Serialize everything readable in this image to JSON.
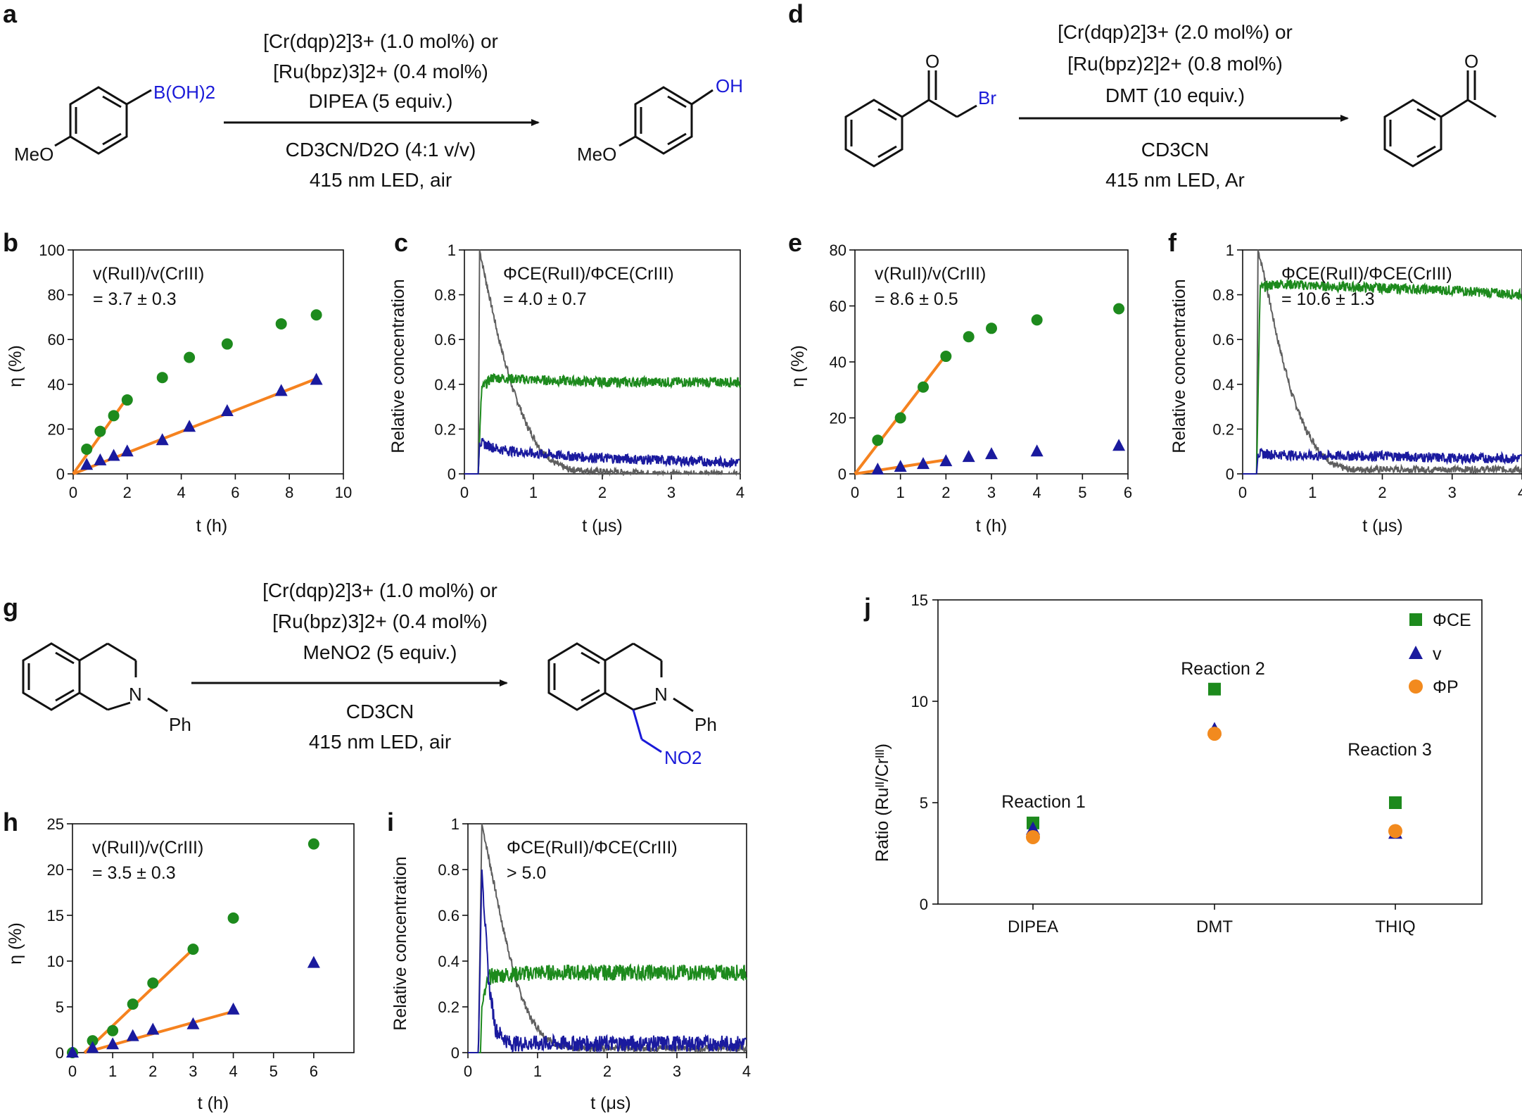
{
  "figure": {
    "panels": {
      "a": "a",
      "b": "b",
      "c": "c",
      "d": "d",
      "e": "e",
      "f": "f",
      "g": "g",
      "h": "h",
      "i": "i",
      "j": "j"
    },
    "axis_labels": {
      "t_h": "t (h)",
      "t_us": "t (μs)",
      "eta": "η (%)",
      "relconc": "Relative concentration",
      "ratio": "Ratio (Ruᴵᴵ/Crᴵᴵᴵ)"
    },
    "colors": {
      "green": "#1d8a1d",
      "blue": "#1a1a9e",
      "gray": "#5e5e5e",
      "orange": "#f28a1e",
      "fitline": "#f5821f"
    }
  },
  "schemes": {
    "a": {
      "substrate_group": "B(OH)2",
      "substrate_ome": "MeO",
      "line1": "[Cr(dqp)2]3+ (1.0 mol%) or",
      "line2": "[Ru(bpz)3]2+ (0.4 mol%)",
      "line3": "DIPEA (5 equiv.)",
      "line4": "CD3CN/D2O (4:1 v/v)",
      "line5": "415 nm LED, air",
      "product_group": "OH",
      "product_ome": "MeO"
    },
    "d": {
      "substrate_o": "O",
      "substrate_br": "Br",
      "line1": "[Cr(dqp)2]3+ (2.0 mol%) or",
      "line2": "[Ru(bpz)2]2+ (0.8 mol%)",
      "line3": "DMT (10 equiv.)",
      "line4": "CD3CN",
      "line5": "415 nm LED, Ar",
      "product_o": "O"
    },
    "g": {
      "n_label": "N",
      "ph_label": "Ph",
      "line1": "[Cr(dqp)2]3+ (1.0 mol%) or",
      "line2": "[Ru(bpz)3]2+ (0.4 mol%)",
      "line3": "MeNO2 (5 equiv.)",
      "line4": "CD3CN",
      "line5": "415 nm LED, air",
      "product_n": "N",
      "product_ph": "Ph",
      "product_no2": "NO2"
    }
  },
  "chart_data": [
    {
      "id": "b",
      "type": "scatter",
      "xlabel": "t (h)",
      "ylabel": "η (%)",
      "xlim": [
        0,
        10
      ],
      "ylim": [
        0,
        100
      ],
      "xticks": [
        0,
        2,
        4,
        6,
        8,
        10
      ],
      "yticks": [
        0,
        20,
        40,
        60,
        80,
        100
      ],
      "annotation": [
        "v(RuII)/v(CrIII)",
        "= 3.7 ± 0.3"
      ],
      "series": [
        {
          "name": "Ru(II)",
          "marker": "circle",
          "x": [
            0.5,
            1.0,
            1.5,
            2.0,
            3.3,
            4.3,
            5.7,
            7.7,
            9.0
          ],
          "y": [
            11,
            19,
            26,
            33,
            43,
            52,
            58,
            67,
            71
          ]
        },
        {
          "name": "Cr(III)",
          "marker": "triangle",
          "x": [
            0.5,
            1.0,
            1.5,
            2.0,
            3.3,
            4.3,
            5.7,
            7.7,
            9.0
          ],
          "y": [
            4,
            6,
            8,
            10,
            15,
            21,
            28,
            37,
            42
          ]
        }
      ],
      "fits": [
        {
          "x": [
            0,
            2.0
          ],
          "y": [
            0,
            34
          ]
        },
        {
          "x": [
            0,
            9.0
          ],
          "y": [
            0,
            42.5
          ]
        }
      ]
    },
    {
      "id": "c",
      "type": "line",
      "xlabel": "t (μs)",
      "ylabel": "Relative concentration",
      "xlim": [
        0,
        4
      ],
      "ylim": [
        0,
        1.0
      ],
      "xticks": [
        0,
        1,
        2,
        3,
        4
      ],
      "yticks": [
        0,
        0.2,
        0.4,
        0.6,
        0.8,
        1.0
      ],
      "annotation": [
        "ΦCE(RuII)/ΦCE(CrIII)",
        "= 4.0 ± 0.7"
      ],
      "traces": [
        {
          "name": "gray decay",
          "color": "gray",
          "x": [
            0,
            0.2,
            0.22,
            0.3,
            0.5,
            0.7,
            0.9,
            1.1,
            1.3,
            1.5,
            2.0,
            3.0,
            4.0
          ],
          "y": [
            0,
            0.0,
            1.0,
            0.88,
            0.6,
            0.38,
            0.22,
            0.11,
            0.05,
            0.02,
            0.01,
            0.0,
            0.0
          ]
        },
        {
          "name": "green",
          "color": "green",
          "x": [
            0,
            0.2,
            0.25,
            0.4,
            1.0,
            2.0,
            3.0,
            4.0
          ],
          "y": [
            0,
            0,
            0.38,
            0.43,
            0.42,
            0.41,
            0.41,
            0.41
          ]
        },
        {
          "name": "blue",
          "color": "blue",
          "x": [
            0,
            0.2,
            0.22,
            0.5,
            1.0,
            2.0,
            3.0,
            4.0
          ],
          "y": [
            0,
            0,
            0.14,
            0.11,
            0.09,
            0.07,
            0.06,
            0.05
          ]
        }
      ]
    },
    {
      "id": "e",
      "type": "scatter",
      "xlabel": "t (h)",
      "ylabel": "η (%)",
      "xlim": [
        0,
        6
      ],
      "ylim": [
        0,
        80
      ],
      "xticks": [
        0,
        1,
        2,
        3,
        4,
        5,
        6
      ],
      "yticks": [
        0,
        20,
        40,
        60,
        80
      ],
      "annotation": [
        "v(RuII)/v(CrIII)",
        "= 8.6 ± 0.5"
      ],
      "series": [
        {
          "name": "Ru(II)",
          "marker": "circle",
          "x": [
            0.5,
            1.0,
            1.5,
            2.0,
            2.5,
            3.0,
            4.0,
            5.8
          ],
          "y": [
            12,
            20,
            31,
            42,
            49,
            52,
            55,
            59
          ]
        },
        {
          "name": "Cr(III)",
          "marker": "triangle",
          "x": [
            0.5,
            1.0,
            1.5,
            2.0,
            2.5,
            3.0,
            4.0,
            5.8
          ],
          "y": [
            1.5,
            2.5,
            3.5,
            4.5,
            6,
            7,
            8,
            10
          ]
        }
      ],
      "fits": [
        {
          "x": [
            0,
            2.0
          ],
          "y": [
            0,
            42.5
          ]
        },
        {
          "x": [
            0,
            2.0
          ],
          "y": [
            0,
            5
          ]
        }
      ]
    },
    {
      "id": "f",
      "type": "line",
      "xlabel": "t (μs)",
      "ylabel": "Relative concentration",
      "xlim": [
        0,
        4
      ],
      "ylim": [
        0,
        1.0
      ],
      "xticks": [
        0,
        1,
        2,
        3,
        4
      ],
      "yticks": [
        0,
        0.2,
        0.4,
        0.6,
        0.8,
        1.0
      ],
      "annotation": [
        "ΦCE(RuII)/ΦCE(CrIII)",
        "= 10.6 ± 1.3"
      ],
      "traces": [
        {
          "name": "gray decay",
          "color": "gray",
          "x": [
            0,
            0.2,
            0.22,
            0.3,
            0.5,
            0.7,
            0.9,
            1.1,
            1.3,
            1.5,
            2.0,
            3.0,
            4.0
          ],
          "y": [
            0,
            0,
            1.0,
            0.9,
            0.6,
            0.36,
            0.2,
            0.1,
            0.04,
            0.02,
            0.02,
            0.02,
            0.02
          ]
        },
        {
          "name": "green",
          "color": "green",
          "x": [
            0,
            0.2,
            0.25,
            0.5,
            1.0,
            2.0,
            3.0,
            4.0
          ],
          "y": [
            0,
            0,
            0.83,
            0.85,
            0.84,
            0.83,
            0.82,
            0.8
          ]
        },
        {
          "name": "blue",
          "color": "blue",
          "x": [
            0,
            0.2,
            0.22,
            1.0,
            2.0,
            3.0,
            4.0
          ],
          "y": [
            0,
            0,
            0.09,
            0.08,
            0.08,
            0.07,
            0.07
          ]
        }
      ]
    },
    {
      "id": "h",
      "type": "scatter",
      "xlabel": "t (h)",
      "ylabel": "η (%)",
      "xlim": [
        0,
        7
      ],
      "ylim": [
        0,
        25
      ],
      "xticks": [
        0,
        1,
        2,
        3,
        4,
        5,
        6
      ],
      "yticks": [
        0,
        5,
        10,
        15,
        20,
        25
      ],
      "annotation": [
        "v(RuII)/v(CrIII)",
        "= 3.5 ± 0.3"
      ],
      "series": [
        {
          "name": "Ru(II)",
          "marker": "circle",
          "x": [
            0,
            0.5,
            1.0,
            1.5,
            2.0,
            3.0,
            4.0,
            6.0
          ],
          "y": [
            0,
            1.3,
            2.4,
            5.3,
            7.6,
            11.3,
            14.7,
            22.8
          ]
        },
        {
          "name": "Cr(III)",
          "marker": "triangle",
          "x": [
            0,
            0.5,
            1.0,
            1.5,
            2.0,
            3.0,
            4.0,
            6.0
          ],
          "y": [
            0,
            0.5,
            0.9,
            1.8,
            2.5,
            3.1,
            4.7,
            9.8
          ]
        }
      ],
      "fits": [
        {
          "x": [
            0.3,
            3.0
          ],
          "y": [
            0,
            11.3
          ]
        },
        {
          "x": [
            0.3,
            4.0
          ],
          "y": [
            0,
            4.5
          ]
        }
      ]
    },
    {
      "id": "i",
      "type": "line",
      "xlabel": "t (μs)",
      "ylabel": "Relative concentration",
      "xlim": [
        0,
        4
      ],
      "ylim": [
        0,
        1.0
      ],
      "xticks": [
        0,
        1,
        2,
        3,
        4
      ],
      "yticks": [
        0,
        0.2,
        0.4,
        0.6,
        0.8,
        1.0
      ],
      "annotation": [
        "ΦCE(RuII)/ΦCE(CrIII)",
        "> 5.0"
      ],
      "traces": [
        {
          "name": "gray decay",
          "color": "gray",
          "x": [
            0,
            0.15,
            0.2,
            0.3,
            0.5,
            0.7,
            0.9,
            1.1,
            1.3,
            1.5,
            2.0,
            4.0
          ],
          "y": [
            0,
            0,
            1.0,
            0.85,
            0.55,
            0.3,
            0.15,
            0.07,
            0.03,
            0.02,
            0.02,
            0.02
          ]
        },
        {
          "name": "green",
          "color": "green",
          "x": [
            0,
            0.18,
            0.2,
            0.3,
            0.5,
            1.0,
            2.0,
            3.0,
            4.0
          ],
          "y": [
            0,
            0,
            0.2,
            0.33,
            0.34,
            0.35,
            0.35,
            0.35,
            0.35
          ]
        },
        {
          "name": "blue",
          "color": "blue",
          "x": [
            0,
            0.15,
            0.2,
            0.25,
            0.3,
            0.4,
            0.6,
            1.0,
            2.0,
            3.0,
            4.0
          ],
          "y": [
            0,
            0,
            0.8,
            0.55,
            0.3,
            0.1,
            0.04,
            0.04,
            0.04,
            0.04,
            0.04
          ]
        }
      ]
    },
    {
      "id": "j",
      "type": "scatter",
      "xlabel": "",
      "ylabel": "Ratio (RuII/CrIII)",
      "categories": [
        "DIPEA",
        "DMT",
        "THIQ"
      ],
      "ylim": [
        0,
        15
      ],
      "yticks": [
        0,
        5,
        10,
        15
      ],
      "annotations": [
        "Reaction 1",
        "Reaction 2",
        "Reaction 3"
      ],
      "legend": [
        "ΦCE",
        "v",
        "ΦP"
      ],
      "series": [
        {
          "name": "ΦCE",
          "marker": "square",
          "values": [
            4.0,
            10.6,
            5.0
          ]
        },
        {
          "name": "v",
          "marker": "triangle",
          "values": [
            3.7,
            8.6,
            3.5
          ]
        },
        {
          "name": "ΦP",
          "marker": "circle",
          "values": [
            3.3,
            8.4,
            3.6
          ]
        }
      ]
    }
  ]
}
